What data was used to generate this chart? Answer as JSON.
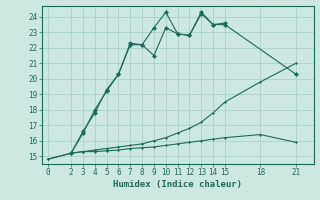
{
  "title": "",
  "xlabel": "Humidex (Indice chaleur)",
  "bg_color": "#cce8e0",
  "line_color": "#1a6b5a",
  "grid_color": "#aed4cc",
  "ylim": [
    14.5,
    24.7
  ],
  "xlim": [
    -0.5,
    22.5
  ],
  "xticks": [
    0,
    2,
    3,
    4,
    5,
    6,
    7,
    8,
    9,
    10,
    11,
    12,
    13,
    14,
    15,
    18,
    21
  ],
  "yticks": [
    15,
    16,
    17,
    18,
    19,
    20,
    21,
    22,
    23,
    24
  ],
  "line1_x": [
    0,
    2,
    3,
    4,
    5,
    6,
    7,
    8,
    9,
    10,
    11,
    12,
    13,
    14,
    15,
    18,
    21
  ],
  "line1_y": [
    14.8,
    15.2,
    15.3,
    15.3,
    15.35,
    15.4,
    15.5,
    15.55,
    15.6,
    15.7,
    15.8,
    15.9,
    16.0,
    16.1,
    16.2,
    16.4,
    15.9
  ],
  "line2_x": [
    0,
    2,
    3,
    4,
    5,
    6,
    7,
    8,
    9,
    10,
    11,
    12,
    13,
    14,
    15,
    18,
    21
  ],
  "line2_y": [
    14.8,
    15.2,
    15.3,
    15.4,
    15.5,
    15.6,
    15.7,
    15.8,
    16.0,
    16.2,
    16.5,
    16.8,
    17.2,
    17.8,
    18.5,
    19.8,
    21.0
  ],
  "line3_x": [
    2,
    3,
    4,
    5,
    6,
    7,
    8,
    9,
    10,
    11,
    12,
    13,
    14,
    15,
    21
  ],
  "line3_y": [
    15.2,
    16.5,
    18.0,
    19.2,
    20.3,
    22.2,
    22.2,
    23.3,
    24.3,
    22.9,
    22.8,
    24.2,
    23.5,
    23.5,
    20.3
  ],
  "line4_x": [
    2,
    3,
    4,
    5,
    6,
    7,
    8,
    9,
    10,
    11,
    12,
    13,
    14,
    15
  ],
  "line4_y": [
    15.2,
    16.6,
    17.8,
    19.3,
    20.3,
    22.3,
    22.2,
    21.5,
    23.3,
    22.9,
    22.8,
    24.3,
    23.5,
    23.6
  ]
}
